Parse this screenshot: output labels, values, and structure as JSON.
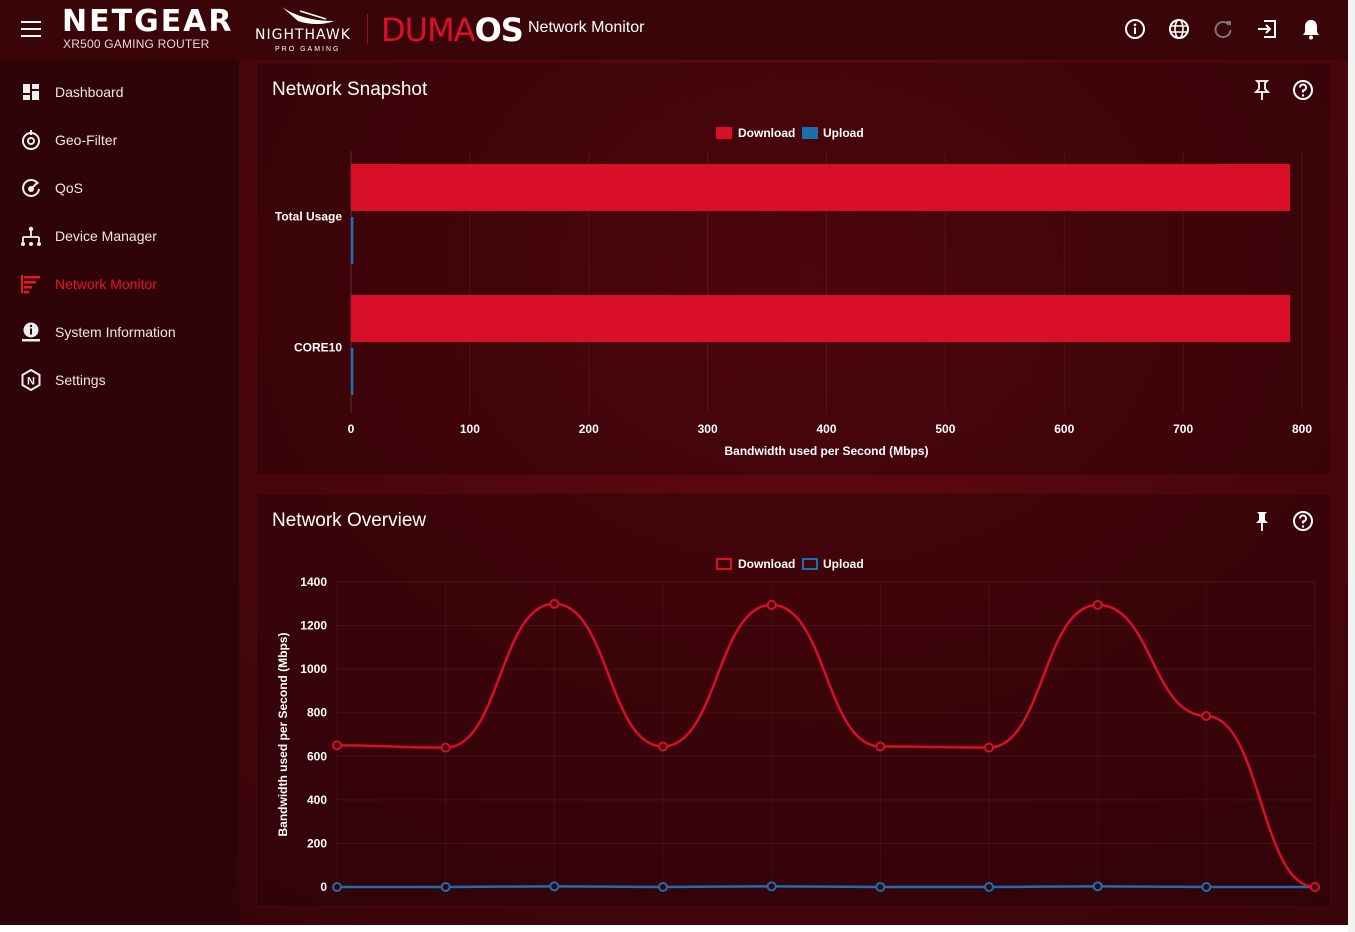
{
  "header": {
    "brand": "NETGEAR",
    "model": "XR500 GAMING ROUTER",
    "nighthawk": "NIGHTHAWK",
    "nighthawk_sub": "PRO GAMING",
    "os_duma": "DUMA",
    "os_os": "OS",
    "page_title": "Network Monitor",
    "icons": [
      "info-icon",
      "globe-icon",
      "refresh-icon",
      "logout-icon",
      "bell-icon"
    ]
  },
  "sidebar": {
    "items": [
      {
        "label": "Dashboard",
        "icon": "dashboard-icon"
      },
      {
        "label": "Geo-Filter",
        "icon": "geo-filter-icon"
      },
      {
        "label": "QoS",
        "icon": "qos-icon"
      },
      {
        "label": "Device Manager",
        "icon": "device-manager-icon"
      },
      {
        "label": "Network Monitor",
        "icon": "network-monitor-icon",
        "active": true
      },
      {
        "label": "System Information",
        "icon": "system-info-icon"
      },
      {
        "label": "Settings",
        "icon": "settings-icon"
      }
    ]
  },
  "colors": {
    "download": "#d90e29",
    "upload": "#1a6fb0",
    "accent": "#e8142c"
  },
  "snapshot": {
    "title": "Network Snapshot",
    "legend_download": "Download",
    "legend_upload": "Upload"
  },
  "overview": {
    "title": "Network Overview",
    "legend_download": "Download",
    "legend_upload": "Upload"
  },
  "chart_data": [
    {
      "type": "bar",
      "orientation": "horizontal",
      "categories": [
        "Total Usage",
        "CORE10"
      ],
      "series": [
        {
          "name": "Download",
          "values": [
            790,
            790
          ]
        },
        {
          "name": "Upload",
          "values": [
            2,
            2
          ]
        }
      ],
      "xlabel": "Bandwidth used per Second (Mbps)",
      "ylabel": "",
      "xlim": [
        0,
        800
      ],
      "xticks": [
        0,
        100,
        200,
        300,
        400,
        500,
        600,
        700,
        800
      ],
      "grid": true,
      "legend": "top-center"
    },
    {
      "type": "line",
      "x": [
        1,
        2,
        3,
        4,
        5,
        6,
        7,
        8,
        9,
        10
      ],
      "series": [
        {
          "name": "Download",
          "values": [
            650,
            640,
            1300,
            645,
            1295,
            645,
            640,
            1295,
            785,
            0
          ]
        },
        {
          "name": "Upload",
          "values": [
            0,
            0,
            3,
            0,
            3,
            0,
            0,
            3,
            0,
            0
          ]
        }
      ],
      "xlabel": "",
      "ylabel": "Bandwidth used per Second (Mbps)",
      "ylim": [
        0,
        1400
      ],
      "yticks": [
        0,
        200,
        400,
        600,
        800,
        1000,
        1200,
        1400
      ],
      "grid": true,
      "legend": "top-center"
    }
  ]
}
